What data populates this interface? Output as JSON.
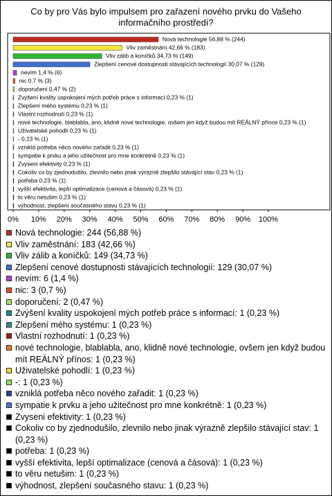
{
  "chart_data": {
    "type": "bar",
    "orientation": "horizontal",
    "title": "Co by pro Vás bylo impulsem pro zařazení nového prvku do Vašeho informačního prostředí?",
    "values": [
      56.88,
      42.66,
      34.73,
      30.07,
      1.4,
      0.7,
      0.47,
      0.23,
      0.23,
      0.23,
      0.23,
      0.23,
      0.23,
      0.23,
      0.23,
      0.23,
      0.23,
      0.23,
      0.23,
      0.23,
      0.23
    ],
    "value_labels": [
      "Nová technologie 56,88 % (244)",
      "Vliv zaměstnání 42,66 % (183)",
      "Vliv zálib a koníčků 34,73 % (149)",
      "Zlepšení cenové dostupnosti stávajících technologií 30,07 % (129)",
      "nevím 1,4 % (6)",
      "nic 0,7 % (3)",
      "doporučení 0,47 % (2)",
      "Zvýšení kvality uspokojení mých potřeb práce s informací 0,23 % (1)",
      "Zlepšení mého systému 0,23 % (1)",
      "Vlastní rozhodnutí 0,23 % (1)",
      "nové technologie, blablabla, ano, klidně nové technologie, ovšem jen když budou mít REÁLNÝ přínos 0,23 % (1)",
      "Uživatelské pohodlí 0,23 % (1)",
      "- 0,23 % (1)",
      "vzniklá potřeba něco nového zařadit 0,23 % (1)",
      "sympatie k prvku a jeho užitečnost pro mne konkrétně 0,23 % (1)",
      "Zvyseni efektivity 0,23 % (1)",
      "Cokoliv co by zjednodušilo, zlevnilo nebo jinak výrazně zlepšilo stávající stav 0,23 % (1)",
      "potřeba 0,23 % (1)",
      "vyšší efektivita, lepší optimalizace (cenová a čásová) 0,23 % (1)",
      "to věru netušim 0,23 % (1)",
      "výhodnost, zlepšení současného stavu 0,23 % (1)"
    ],
    "legend": [
      "Nová technologie: 244 (56,88 %)",
      "Vliv zaměstnání: 183 (42,66 %)",
      "Vliv zálib a koníčků: 149 (34,73 %)",
      "Zlepšení cenové dostupnosti stávajících technologií: 129 (30,07 %)",
      "nevím: 6 (1,4 %)",
      "nic: 3 (0,7 %)",
      "doporučení: 2 (0,47 %)",
      "Zvýšení kvality uspokojení mých potřeb práce s informací: 1 (0,23 %)",
      "Zlepšení mého systému: 1 (0,23 %)",
      "Vlastní rozhodnutí: 1 (0,23 %)",
      "nové technologie, blablabla, ano, klidně nové technologie, ovšem jen když budou mít REÁLNÝ přínos: 1 (0,23 %)",
      "Uživatelské pohodlí: 1 (0,23 %)",
      "-: 1 (0,23 %)",
      "vzniklá potřeba něco nového zařadit: 1 (0,23 %)",
      "sympatie k prvku a jeho užitečnost pro mne konkrétně: 1 (0,23 %)",
      "Zvyseni efektivity: 1 (0,23 %)",
      "Cokoliv co by zjednodušilo, zlevnilo nebo jinak výrazně zlepšilo stávající stav: 1 (0,23 %)",
      "potřeba: 1 (0,23 %)",
      "vyšší efektivita, lepší optimalizace (cenová a čásová): 1 (0,23 %)",
      "to věru netušim: 1 (0,23 %)",
      "výhodnost, zlepšení současného stavu: 1 (0,23 %)"
    ],
    "colors": [
      "#c0281f",
      "#f5e53a",
      "#2db82d",
      "#3f6fd0",
      "#b23ad0",
      "#e0501e",
      "#9ee36a",
      "#1f8a8a",
      "#2a8c8c",
      "#a02020",
      "#e07a20",
      "#e8d830",
      "#8ee060",
      "#2a3f9a",
      "#4a70d0",
      "#000000",
      "#000000",
      "#000000",
      "#000000",
      "#000000",
      "#000000"
    ],
    "xlim": [
      0,
      100
    ],
    "xticks": [
      {
        "value": 0,
        "label": "0%"
      },
      {
        "value": 10,
        "label": "10%"
      },
      {
        "value": 20,
        "label": "20%"
      },
      {
        "value": 30,
        "label": "30%"
      },
      {
        "value": 40,
        "label": "40%"
      },
      {
        "value": 50,
        "label": "50%"
      },
      {
        "value": 60,
        "label": "60%"
      },
      {
        "value": 70,
        "label": "70%"
      },
      {
        "value": 80,
        "label": "80%"
      },
      {
        "value": 90,
        "label": "90%"
      },
      {
        "value": 100,
        "label": "100%"
      }
    ]
  }
}
